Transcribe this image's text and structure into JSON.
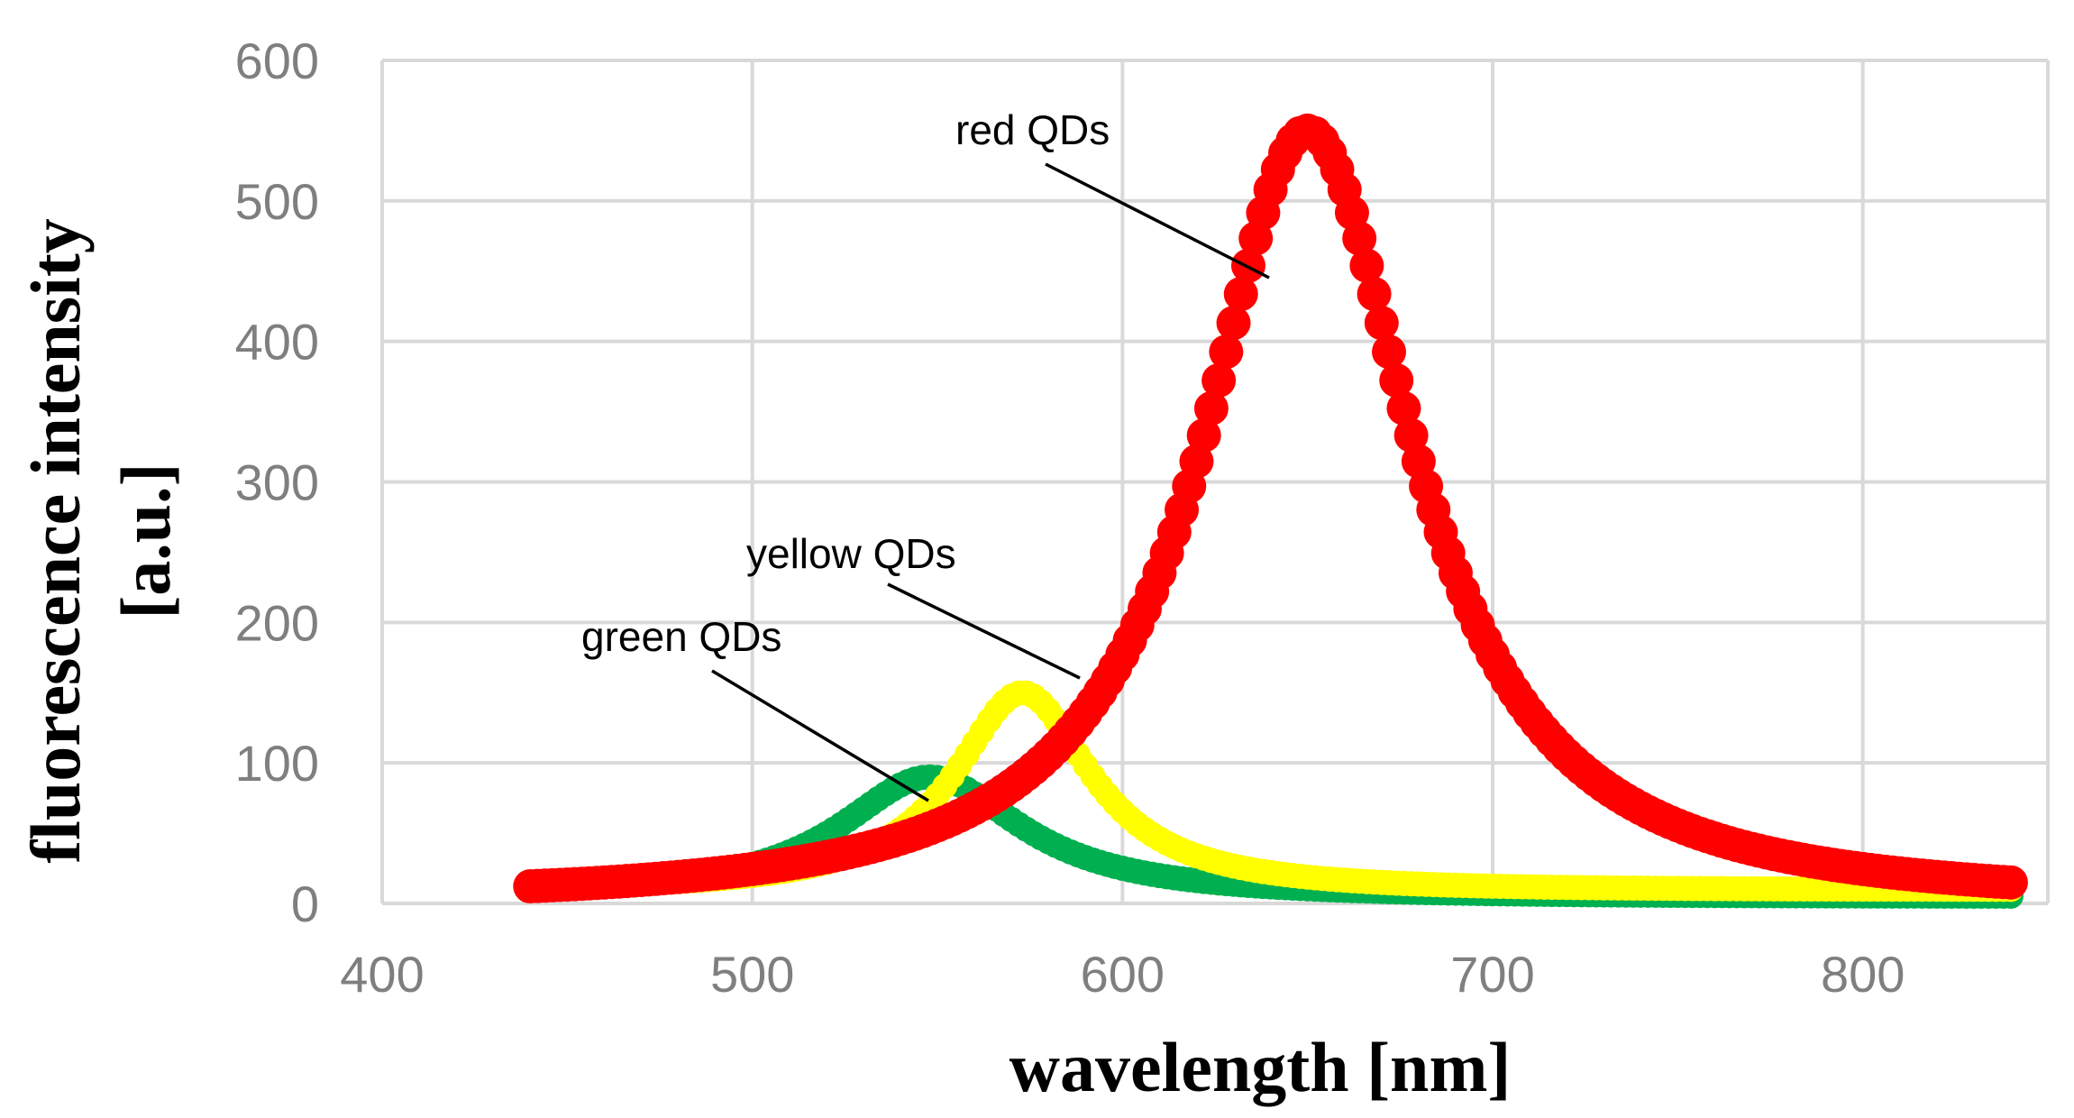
{
  "chart_data": {
    "type": "scatter",
    "title": "",
    "xlabel": "wavelength [nm]",
    "ylabel_line1": "fluorescence intensity",
    "ylabel_line2": "[a.u.]",
    "xlim": [
      400,
      850
    ],
    "ylim": [
      0,
      600
    ],
    "xticks": [
      400,
      500,
      600,
      700,
      800
    ],
    "yticks": [
      0,
      100,
      200,
      300,
      400,
      500,
      600
    ],
    "grid": true,
    "x_start": 440,
    "x_end": 840,
    "x_step": 2,
    "series": [
      {
        "name": "green QDs",
        "color": "#00b050",
        "peak_nm": 548,
        "peak_value": 90,
        "fwhm_nm": 60,
        "baseline": 5,
        "marker": "circle-small",
        "annotation": "green QDs"
      },
      {
        "name": "yellow QDs",
        "color": "#ffff00",
        "peak_nm": 573,
        "peak_value": 150,
        "fwhm_nm": 45,
        "baseline": 10,
        "marker": "circle-small",
        "annotation": "yellow QDs"
      },
      {
        "name": "red QDs",
        "color": "#ff0000",
        "peak_nm": 650,
        "peak_value": 550,
        "fwhm_nm": 70,
        "baseline": 5,
        "marker": "circle-large",
        "annotation": "red QDs"
      }
    ]
  }
}
